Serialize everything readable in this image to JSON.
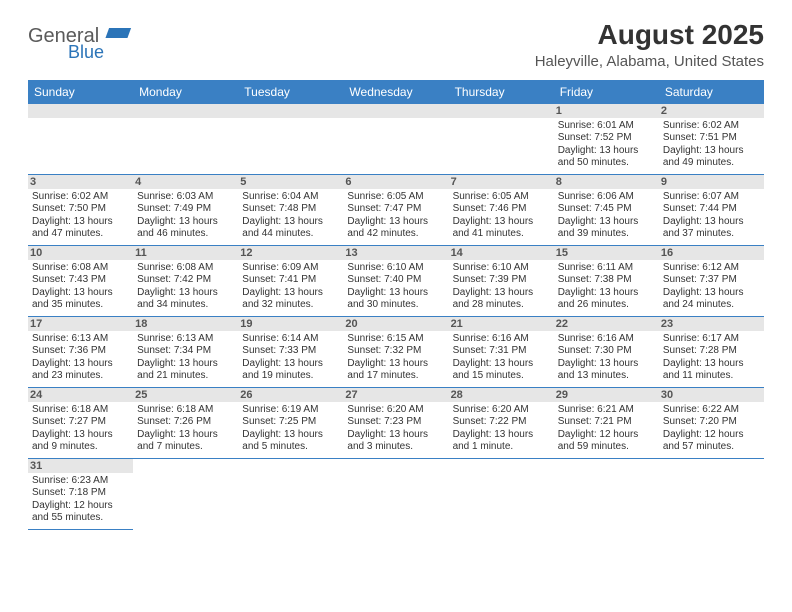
{
  "brand": {
    "name_part1": "General",
    "name_part2": "Blue",
    "text_color": "#5a5a5a",
    "accent_color": "#2b74b8"
  },
  "header": {
    "month_title": "August 2025",
    "location": "Haleyville, Alabama, United States"
  },
  "calendar": {
    "header_bg": "#3a80c4",
    "header_text_color": "#ffffff",
    "date_bar_bg": "#e6e6e6",
    "date_bar_text": "#555555",
    "cell_border_color": "#3a80c4",
    "weekdays": [
      "Sunday",
      "Monday",
      "Tuesday",
      "Wednesday",
      "Thursday",
      "Friday",
      "Saturday"
    ],
    "leading_blanks": 5,
    "days": [
      {
        "n": 1,
        "sunrise": "6:01 AM",
        "sunset": "7:52 PM",
        "daylight": "13 hours and 50 minutes."
      },
      {
        "n": 2,
        "sunrise": "6:02 AM",
        "sunset": "7:51 PM",
        "daylight": "13 hours and 49 minutes."
      },
      {
        "n": 3,
        "sunrise": "6:02 AM",
        "sunset": "7:50 PM",
        "daylight": "13 hours and 47 minutes."
      },
      {
        "n": 4,
        "sunrise": "6:03 AM",
        "sunset": "7:49 PM",
        "daylight": "13 hours and 46 minutes."
      },
      {
        "n": 5,
        "sunrise": "6:04 AM",
        "sunset": "7:48 PM",
        "daylight": "13 hours and 44 minutes."
      },
      {
        "n": 6,
        "sunrise": "6:05 AM",
        "sunset": "7:47 PM",
        "daylight": "13 hours and 42 minutes."
      },
      {
        "n": 7,
        "sunrise": "6:05 AM",
        "sunset": "7:46 PM",
        "daylight": "13 hours and 41 minutes."
      },
      {
        "n": 8,
        "sunrise": "6:06 AM",
        "sunset": "7:45 PM",
        "daylight": "13 hours and 39 minutes."
      },
      {
        "n": 9,
        "sunrise": "6:07 AM",
        "sunset": "7:44 PM",
        "daylight": "13 hours and 37 minutes."
      },
      {
        "n": 10,
        "sunrise": "6:08 AM",
        "sunset": "7:43 PM",
        "daylight": "13 hours and 35 minutes."
      },
      {
        "n": 11,
        "sunrise": "6:08 AM",
        "sunset": "7:42 PM",
        "daylight": "13 hours and 34 minutes."
      },
      {
        "n": 12,
        "sunrise": "6:09 AM",
        "sunset": "7:41 PM",
        "daylight": "13 hours and 32 minutes."
      },
      {
        "n": 13,
        "sunrise": "6:10 AM",
        "sunset": "7:40 PM",
        "daylight": "13 hours and 30 minutes."
      },
      {
        "n": 14,
        "sunrise": "6:10 AM",
        "sunset": "7:39 PM",
        "daylight": "13 hours and 28 minutes."
      },
      {
        "n": 15,
        "sunrise": "6:11 AM",
        "sunset": "7:38 PM",
        "daylight": "13 hours and 26 minutes."
      },
      {
        "n": 16,
        "sunrise": "6:12 AM",
        "sunset": "7:37 PM",
        "daylight": "13 hours and 24 minutes."
      },
      {
        "n": 17,
        "sunrise": "6:13 AM",
        "sunset": "7:36 PM",
        "daylight": "13 hours and 23 minutes."
      },
      {
        "n": 18,
        "sunrise": "6:13 AM",
        "sunset": "7:34 PM",
        "daylight": "13 hours and 21 minutes."
      },
      {
        "n": 19,
        "sunrise": "6:14 AM",
        "sunset": "7:33 PM",
        "daylight": "13 hours and 19 minutes."
      },
      {
        "n": 20,
        "sunrise": "6:15 AM",
        "sunset": "7:32 PM",
        "daylight": "13 hours and 17 minutes."
      },
      {
        "n": 21,
        "sunrise": "6:16 AM",
        "sunset": "7:31 PM",
        "daylight": "13 hours and 15 minutes."
      },
      {
        "n": 22,
        "sunrise": "6:16 AM",
        "sunset": "7:30 PM",
        "daylight": "13 hours and 13 minutes."
      },
      {
        "n": 23,
        "sunrise": "6:17 AM",
        "sunset": "7:28 PM",
        "daylight": "13 hours and 11 minutes."
      },
      {
        "n": 24,
        "sunrise": "6:18 AM",
        "sunset": "7:27 PM",
        "daylight": "13 hours and 9 minutes."
      },
      {
        "n": 25,
        "sunrise": "6:18 AM",
        "sunset": "7:26 PM",
        "daylight": "13 hours and 7 minutes."
      },
      {
        "n": 26,
        "sunrise": "6:19 AM",
        "sunset": "7:25 PM",
        "daylight": "13 hours and 5 minutes."
      },
      {
        "n": 27,
        "sunrise": "6:20 AM",
        "sunset": "7:23 PM",
        "daylight": "13 hours and 3 minutes."
      },
      {
        "n": 28,
        "sunrise": "6:20 AM",
        "sunset": "7:22 PM",
        "daylight": "13 hours and 1 minute."
      },
      {
        "n": 29,
        "sunrise": "6:21 AM",
        "sunset": "7:21 PM",
        "daylight": "12 hours and 59 minutes."
      },
      {
        "n": 30,
        "sunrise": "6:22 AM",
        "sunset": "7:20 PM",
        "daylight": "12 hours and 57 minutes."
      },
      {
        "n": 31,
        "sunrise": "6:23 AM",
        "sunset": "7:18 PM",
        "daylight": "12 hours and 55 minutes."
      }
    ],
    "labels": {
      "sunrise": "Sunrise:",
      "sunset": "Sunset:",
      "daylight": "Daylight:"
    }
  }
}
